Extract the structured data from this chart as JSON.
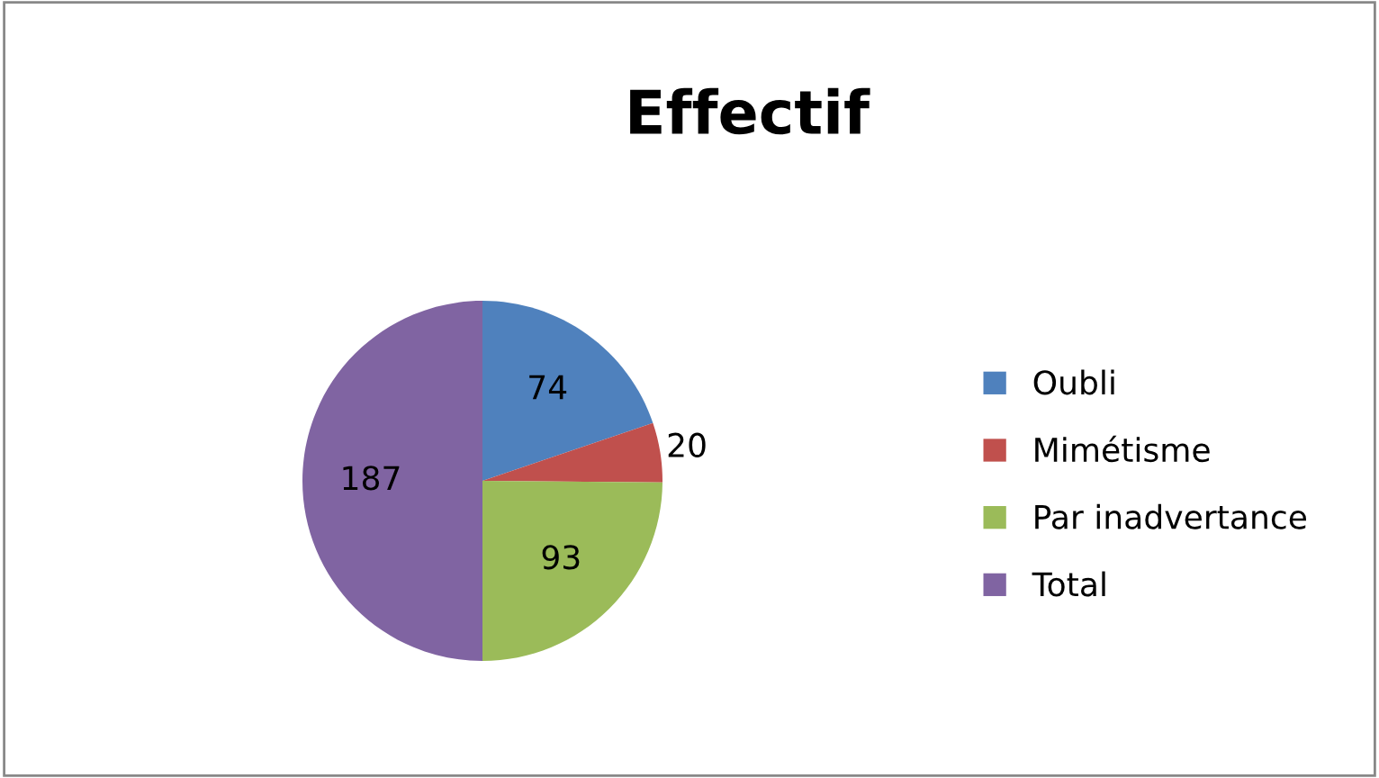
{
  "chart_data": {
    "type": "pie",
    "title": "Effectif",
    "categories": [
      "Oubli",
      "Mimétisme",
      "Par inadvertance",
      "Total"
    ],
    "values": [
      74,
      20,
      93,
      187
    ],
    "colors": [
      "#4f81bd",
      "#c0504d",
      "#9bbb59",
      "#8064a2"
    ],
    "data_labels": true,
    "legend": "right"
  }
}
